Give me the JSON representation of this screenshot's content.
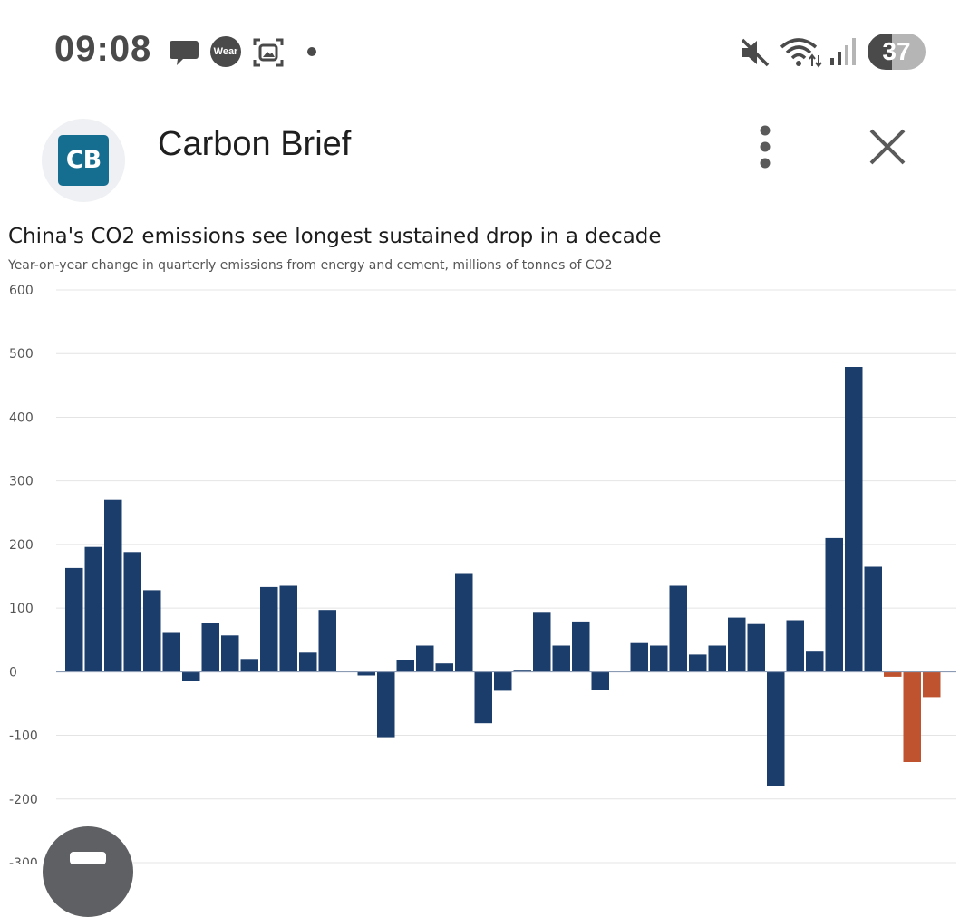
{
  "status_bar": {
    "time": "09:08",
    "notification_icons": [
      "chat-bubble-icon",
      "wear-icon",
      "screenshot-icon",
      "dot-icon"
    ],
    "wear_label": "Wear",
    "right_icons": [
      "mute-icon",
      "wifi-icon",
      "signal-icon"
    ],
    "battery_level": "37"
  },
  "app_bar": {
    "logo_text": "CB",
    "title": "Carbon Brief",
    "menu_icon": "more-vertical-icon",
    "close_icon": "close-icon",
    "colors": {
      "logo_bg": "#156d90"
    }
  },
  "chart_data": {
    "type": "bar",
    "title": "China's CO2 emissions see longest sustained drop in a decade",
    "subtitle": "Year-on-year change in quarterly emissions from energy and cement, millions of tonnes of CO2",
    "xlabel": "",
    "ylabel": "",
    "ylim": [
      -300,
      600
    ],
    "yticks": [
      "600",
      "500",
      "400",
      "300",
      "200",
      "100",
      "0",
      "-100",
      "-200",
      "-300"
    ],
    "grid": true,
    "values": [
      163,
      196,
      270,
      188,
      128,
      61,
      -15,
      77,
      57,
      20,
      133,
      135,
      30,
      97,
      0,
      -6,
      -103,
      19,
      41,
      13,
      155,
      -81,
      -30,
      3,
      94,
      41,
      79,
      -28,
      0,
      45,
      41,
      135,
      27,
      41,
      85,
      75,
      -179,
      81,
      33,
      210,
      479,
      165,
      -8,
      -142,
      -40
    ],
    "colors": {
      "positive": "#1b3d6b",
      "recent": "#c0532f",
      "gridline": "#e4e4e4",
      "zero_line": "#8a9bb3"
    },
    "recent_from_index": 42
  }
}
